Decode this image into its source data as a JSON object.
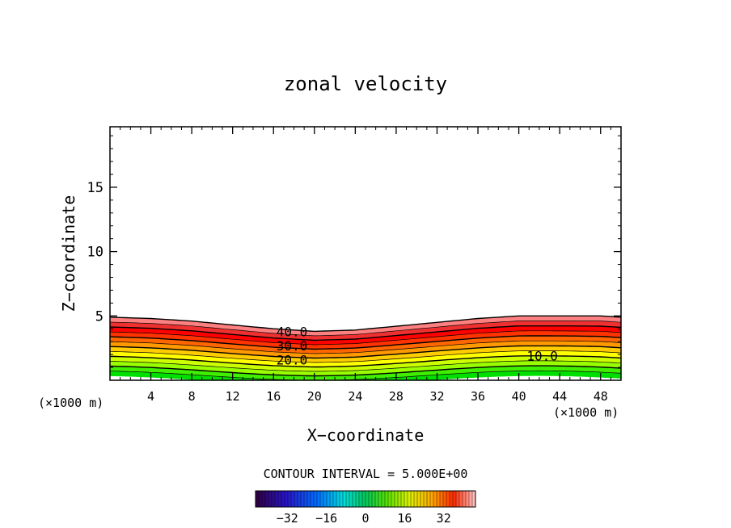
{
  "chart_data": {
    "type": "contour",
    "title": "zonal velocity",
    "xlabel": "X−coordinate",
    "ylabel": "Z−coordinate",
    "x_unit_left": "(×1000 m)",
    "x_unit_right": "(×1000 m)",
    "xlim": [
      0,
      50
    ],
    "ylim": [
      0,
      19.7
    ],
    "x_ticks": [
      4,
      8,
      12,
      16,
      20,
      24,
      28,
      32,
      36,
      40,
      44,
      48
    ],
    "y_ticks": [
      5,
      10,
      15
    ],
    "x_tick_labels": [
      "4",
      "8",
      "12",
      "16",
      "20",
      "24",
      "28",
      "32",
      "36",
      "40",
      "44",
      "48"
    ],
    "y_tick_labels": [
      "5",
      "10",
      "15"
    ],
    "contour_interval_text": "CONTOUR INTERVAL = 5.000E+00",
    "contour_labels": [
      {
        "text": "40.0",
        "x": 17.8,
        "z": 3.8
      },
      {
        "text": "30.0",
        "x": 17.8,
        "z": 2.7
      },
      {
        "text": "20.0",
        "x": 17.8,
        "z": 1.6
      },
      {
        "text": "10.0",
        "x": 42.3,
        "z": 1.9
      }
    ],
    "surface": {
      "x": [
        0,
        4,
        8,
        12,
        16,
        20,
        24,
        28,
        32,
        36,
        40,
        44,
        48,
        50
      ],
      "top_z": [
        4.9,
        4.8,
        4.6,
        4.3,
        4.0,
        3.8,
        3.9,
        4.2,
        4.5,
        4.8,
        5.0,
        5.0,
        5.0,
        4.9
      ]
    },
    "colorbar": {
      "ticks": [
        -32,
        -16,
        0,
        16,
        32
      ],
      "tick_labels": [
        "−32",
        "−16",
        "0",
        "16",
        "32"
      ],
      "range": [
        -45,
        45
      ]
    },
    "band_colors": [
      "#00e000",
      "#40ee00",
      "#99ff00",
      "#ccff00",
      "#ffff00",
      "#ffcc00",
      "#ff9900",
      "#ff6600",
      "#ff3300",
      "#ff0000",
      "#f03030",
      "#ff8080"
    ]
  }
}
